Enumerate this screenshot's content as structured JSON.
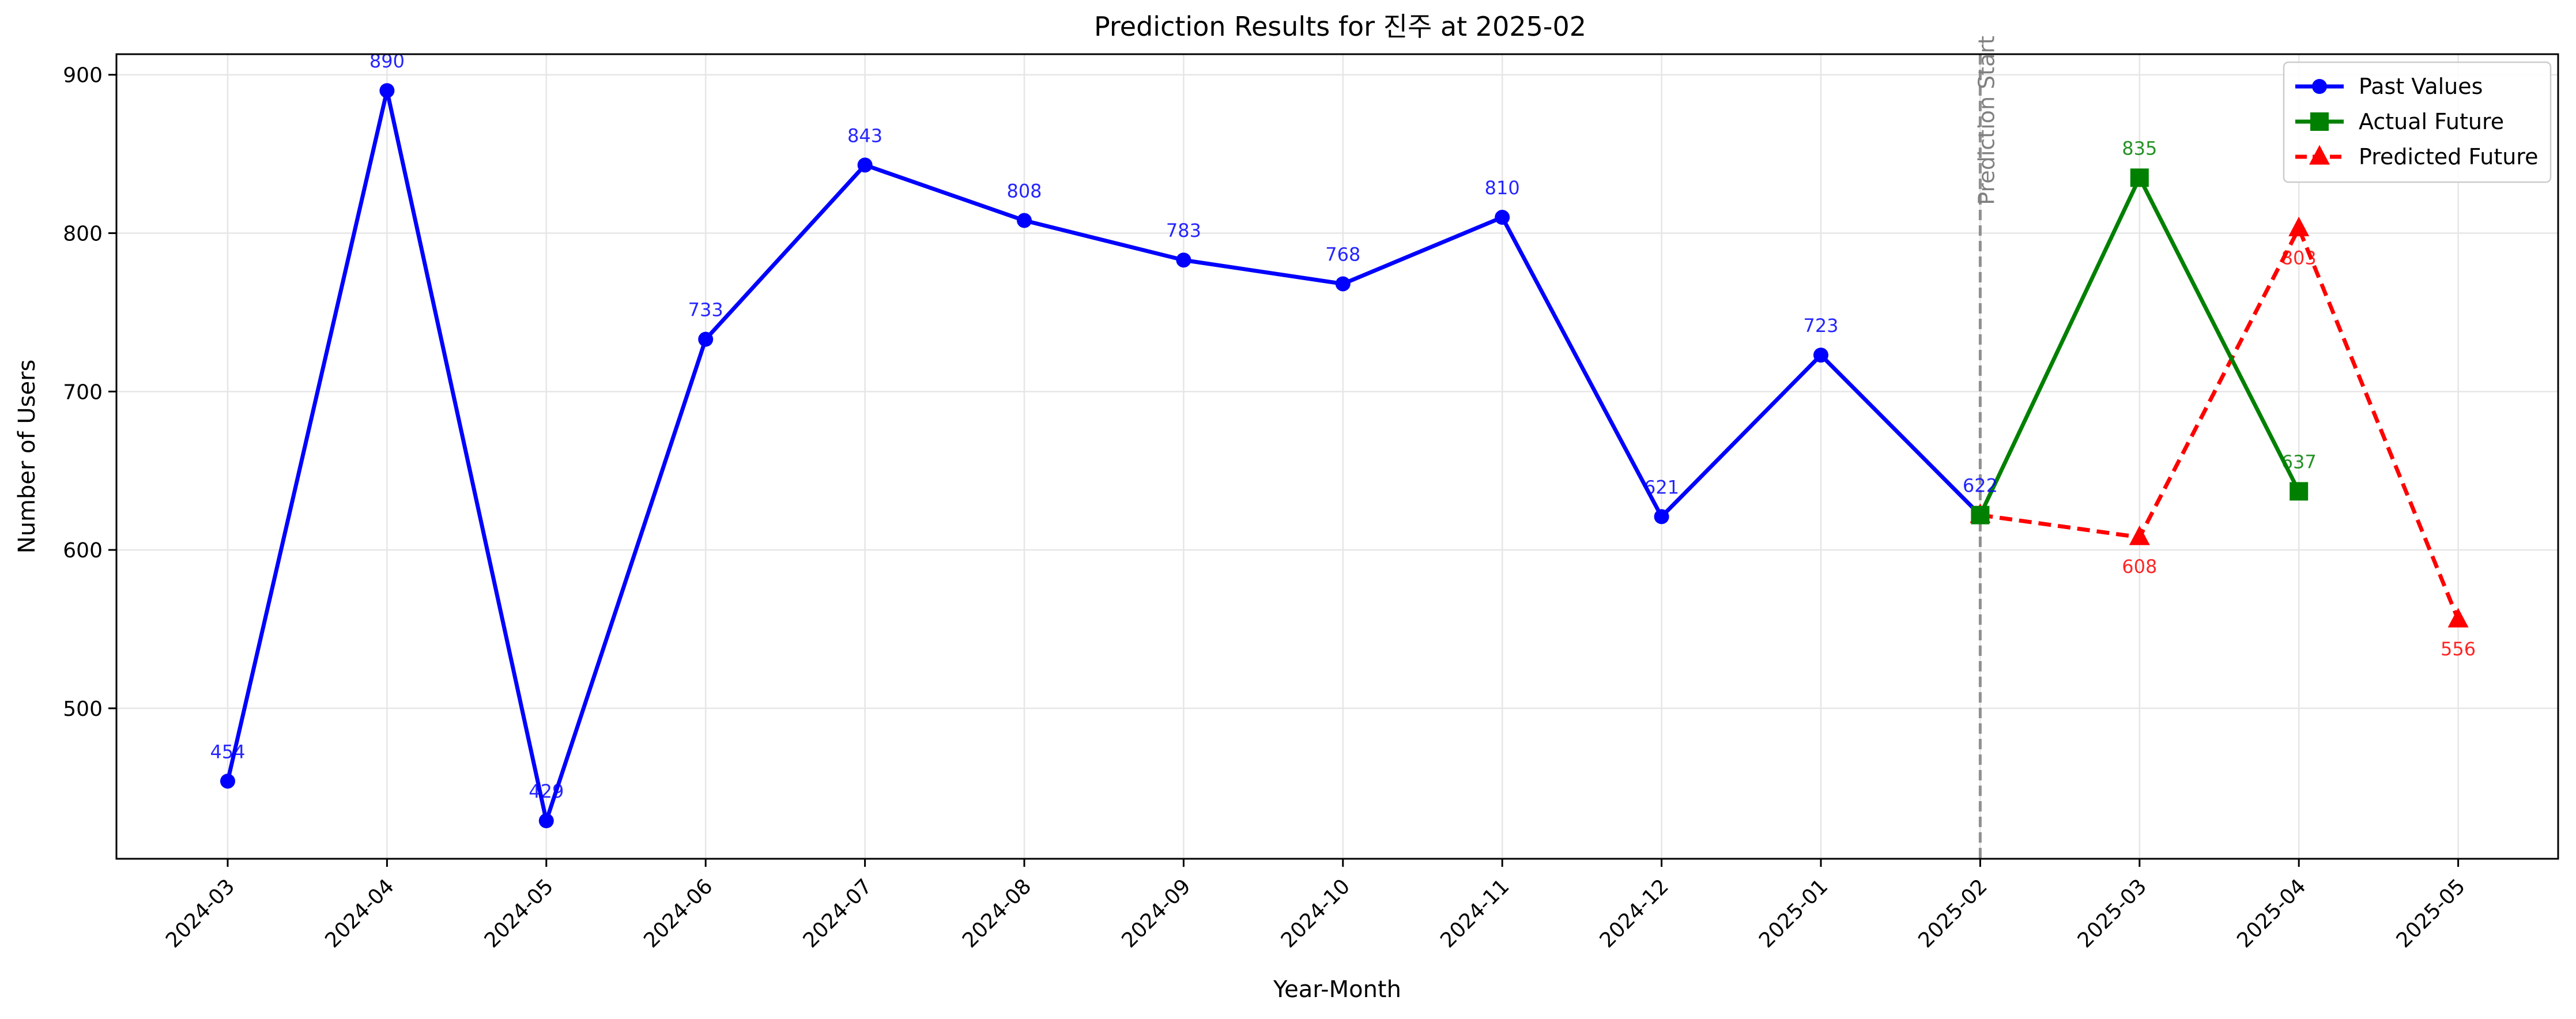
{
  "chart_data": {
    "type": "line",
    "title": "Prediction Results for 진주 at 2025-02",
    "xlabel": "Year-Month",
    "ylabel": "Number of Users",
    "categories": [
      "2024-03",
      "2024-04",
      "2024-05",
      "2024-06",
      "2024-07",
      "2024-08",
      "2024-09",
      "2024-10",
      "2024-11",
      "2024-12",
      "2025-01",
      "2025-02",
      "2025-03",
      "2025-04",
      "2025-05"
    ],
    "ylim": [
      405,
      913
    ],
    "yticks": [
      500,
      600,
      700,
      800,
      900
    ],
    "grid": true,
    "legend_position": "top-right",
    "annotation": {
      "text": "Prediction Start",
      "x": "2025-02"
    },
    "series": [
      {
        "name": "Past Values",
        "color": "#0000ff",
        "marker": "circle",
        "dashed": false,
        "x": [
          "2024-03",
          "2024-04",
          "2024-05",
          "2024-06",
          "2024-07",
          "2024-08",
          "2024-09",
          "2024-10",
          "2024-11",
          "2024-12",
          "2025-01",
          "2025-02"
        ],
        "values": [
          454,
          890,
          429,
          733,
          843,
          808,
          783,
          768,
          810,
          621,
          723,
          622
        ],
        "labels": [
          "454",
          "890",
          "429",
          "733",
          "843",
          "808",
          "783",
          "768",
          "810",
          "621",
          "723",
          "622"
        ],
        "label_side": "above"
      },
      {
        "name": "Actual Future",
        "color": "#008000",
        "marker": "square",
        "dashed": false,
        "x": [
          "2025-02",
          "2025-03",
          "2025-04"
        ],
        "values": [
          622,
          835,
          637
        ],
        "labels": [
          "",
          "835",
          "637"
        ],
        "label_side": "above"
      },
      {
        "name": "Predicted Future",
        "color": "#ff0000",
        "marker": "triangle",
        "dashed": true,
        "x": [
          "2025-02",
          "2025-03",
          "2025-04",
          "2025-05"
        ],
        "values": [
          622,
          608,
          803,
          556
        ],
        "labels": [
          "",
          "608",
          "803",
          "556"
        ],
        "label_side": "below"
      }
    ]
  }
}
